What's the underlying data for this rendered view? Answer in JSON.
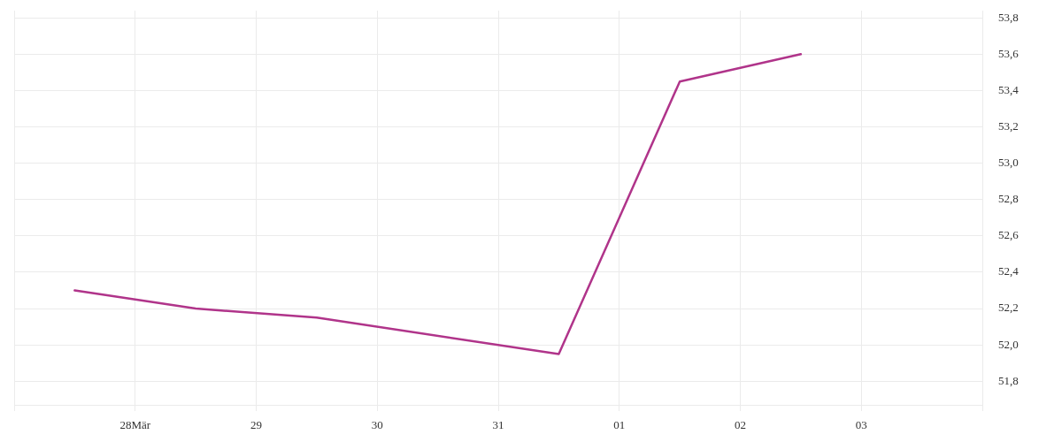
{
  "chart_data": {
    "type": "line",
    "x": [
      "--03-27T12:00",
      "--03-28T12:00",
      "--03-29T12:00",
      "--03-31T12:00",
      "--04-01T12:00",
      "--04-02T12:00"
    ],
    "series": [
      {
        "color": "#b0348a",
        "values": [
          52.3,
          52.2,
          52.15,
          51.95,
          53.45,
          53.6
        ]
      }
    ],
    "xlim": [
      "--03-27",
      "--04-04"
    ],
    "xticks": [
      {
        "value": "--03-27",
        "label": null
      },
      {
        "value": "--03-28",
        "label": "28Mär"
      },
      {
        "value": "--03-29",
        "label": "29"
      },
      {
        "value": "--03-30",
        "label": "30"
      },
      {
        "value": "--03-31",
        "label": "31"
      },
      {
        "value": "--04-01",
        "label": "01"
      },
      {
        "value": "--04-02",
        "label": "02"
      },
      {
        "value": "--04-03",
        "label": "03"
      },
      {
        "value": "--04-04",
        "label": null
      }
    ],
    "ylim": [
      51.67,
      53.84
    ],
    "yticks": [
      {
        "value": 51.8,
        "label": "51,8"
      },
      {
        "value": 52.0,
        "label": "52,0"
      },
      {
        "value": 52.2,
        "label": "52,2"
      },
      {
        "value": 52.4,
        "label": "52,4"
      },
      {
        "value": 52.6,
        "label": "52,6"
      },
      {
        "value": 52.8,
        "label": "52,8"
      },
      {
        "value": 53.0,
        "label": "53,0"
      },
      {
        "value": 53.2,
        "label": "53,2"
      },
      {
        "value": 53.4,
        "label": "53,4"
      },
      {
        "value": 53.6,
        "label": "53,6"
      },
      {
        "value": 53.8,
        "label": "53,8"
      }
    ],
    "grid": true,
    "marker": "none"
  }
}
